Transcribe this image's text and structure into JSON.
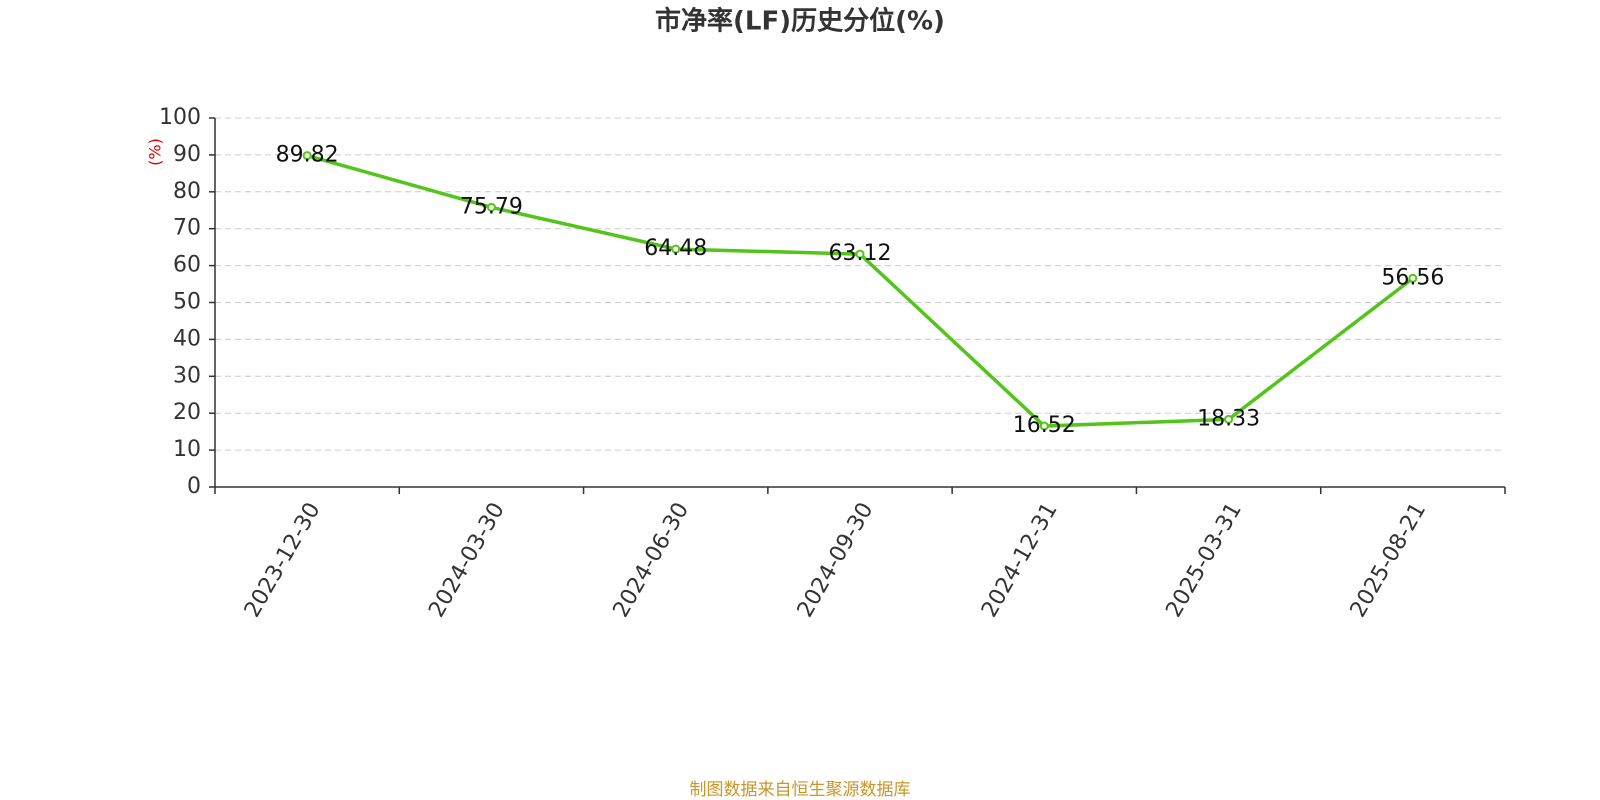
{
  "chart_data": {
    "type": "line",
    "title": "市净率(LF)历史分位(%)",
    "y_label": "(%)",
    "categories": [
      "2023-12-30",
      "2024-03-30",
      "2024-06-30",
      "2024-09-30",
      "2024-12-31",
      "2025-03-31",
      "2025-08-21"
    ],
    "series": [
      {
        "name": "市净率(LF)历史分位",
        "color": "#52c41a",
        "values": [
          89.82,
          75.79,
          64.48,
          63.12,
          16.52,
          18.33,
          56.56
        ]
      }
    ],
    "ylim": [
      0,
      100
    ],
    "yticks": [
      0,
      10,
      20,
      30,
      40,
      50,
      60,
      70,
      80,
      90,
      100
    ],
    "grid": true,
    "source": "制图数据来自恒生聚源数据库"
  }
}
